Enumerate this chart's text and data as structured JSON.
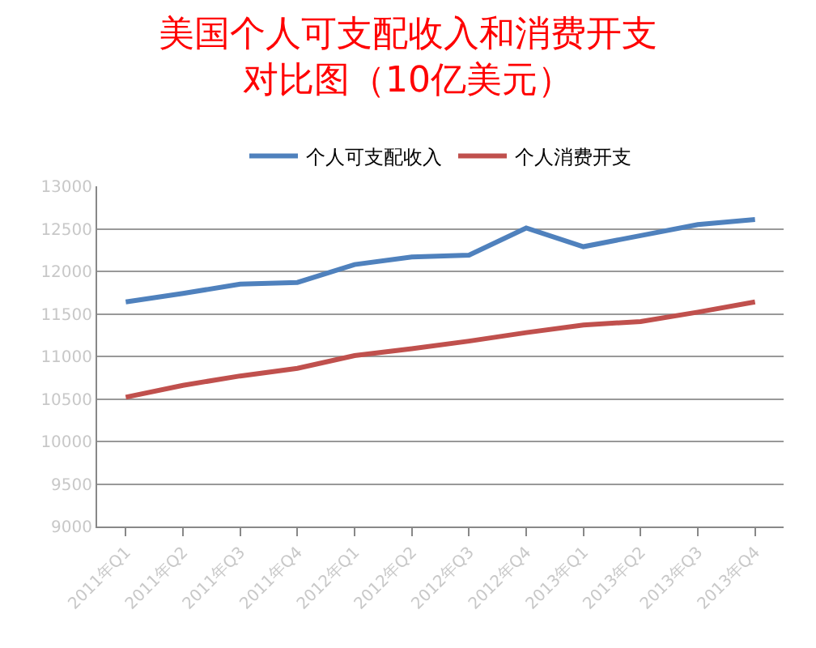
{
  "chart_data": {
    "type": "line",
    "title": "美国个人可支配收入和消费开支对比图（10亿美元）",
    "categories": [
      "2011年Q1",
      "2011年Q2",
      "2011年Q3",
      "2011年Q4",
      "2012年Q1",
      "2012年Q2",
      "2012年Q3",
      "2012年Q4",
      "2013年Q1",
      "2013年Q2",
      "2013年Q3",
      "2013年Q4"
    ],
    "series": [
      {
        "name": "个人可支配收入",
        "color": "#4f81bd",
        "values": [
          11640,
          11740,
          11850,
          11870,
          12080,
          12170,
          12190,
          12510,
          12290,
          12420,
          12550,
          12610
        ]
      },
      {
        "name": "个人消费开支",
        "color": "#c0504d",
        "values": [
          10520,
          10660,
          10770,
          10860,
          11010,
          11090,
          11180,
          11280,
          11370,
          11410,
          11520,
          11640
        ]
      }
    ],
    "ylim": [
      9000,
      13000
    ],
    "yticks": [
      9000,
      9500,
      10000,
      10500,
      11000,
      11500,
      12000,
      12500,
      13000
    ],
    "grid": "y",
    "legend": "top",
    "marker": "none",
    "line_style": "solid"
  }
}
